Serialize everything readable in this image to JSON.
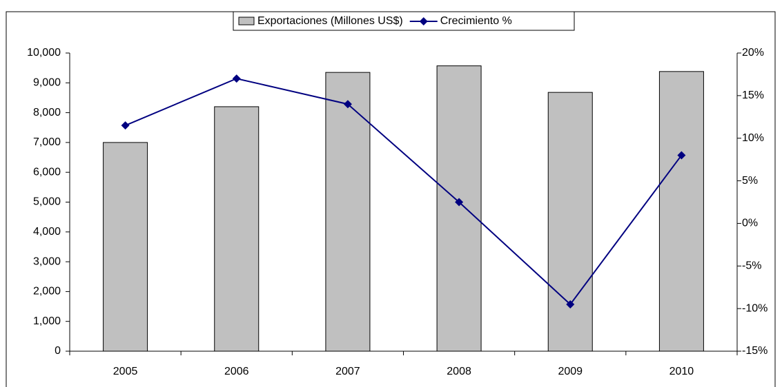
{
  "chart_data": {
    "type": "bar-line",
    "categories": [
      "2005",
      "2006",
      "2007",
      "2008",
      "2009",
      "2010"
    ],
    "series": [
      {
        "name": "Exportaciones (Millones US$)",
        "type": "bar",
        "color": "#c0c0c0",
        "values": [
          7000,
          8200,
          9350,
          9570,
          8680,
          9380
        ]
      },
      {
        "name": "Crecimiento %",
        "type": "line",
        "color": "#000080",
        "axis": "y2",
        "values": [
          11.5,
          17,
          14,
          2.5,
          -9.5,
          8
        ]
      }
    ],
    "ylim": [
      0,
      10000
    ],
    "yticks": [
      0,
      {
        "value": 1000,
        "label": "1,000"
      },
      {
        "value": 2000,
        "label": "2,000"
      },
      {
        "value": 3000,
        "label": "3,000"
      },
      {
        "value": 4000,
        "label": "4,000"
      },
      {
        "value": 5000,
        "label": "5,000"
      },
      {
        "value": 6000,
        "label": "6,000"
      },
      {
        "value": 7000,
        "label": "7,000"
      },
      {
        "value": 8000,
        "label": "8,000"
      },
      {
        "value": 9000,
        "label": "9,000"
      },
      {
        "value": 10000,
        "label": "10,000"
      }
    ],
    "y2lim": [
      -15,
      20
    ],
    "y2ticks": [
      {
        "value": -15,
        "label": "-15%"
      },
      {
        "value": -10,
        "label": "-10%"
      },
      {
        "value": -5,
        "label": "-5%"
      },
      {
        "value": 0,
        "label": "0%"
      },
      {
        "value": 5,
        "label": "5%"
      },
      {
        "value": 10,
        "label": "10%"
      },
      {
        "value": 15,
        "label": "15%"
      },
      {
        "value": 20,
        "label": "20%"
      }
    ],
    "legend": "top"
  }
}
